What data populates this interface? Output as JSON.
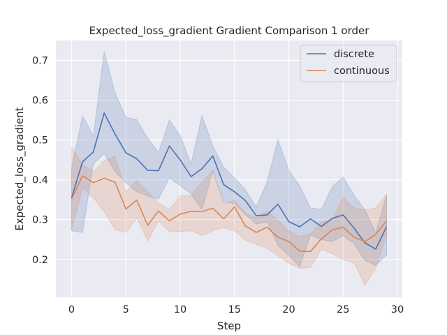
{
  "chart_data": {
    "type": "line",
    "title": "Expected_loss_gradient Gradient Comparison 1 order",
    "xlabel": "Step",
    "ylabel": "Expected_loss_gradient",
    "xlim": [
      -1.45,
      30.45
    ],
    "ylim": [
      0.105,
      0.75
    ],
    "xticks": [
      0,
      5,
      10,
      15,
      20,
      25,
      30
    ],
    "xtick_labels": [
      "0",
      "5",
      "10",
      "15",
      "20",
      "25",
      "30"
    ],
    "yticks": [
      0.2,
      0.3,
      0.4,
      0.5,
      0.6,
      0.7
    ],
    "ytick_labels": [
      "0.2",
      "0.3",
      "0.4",
      "0.5",
      "0.6",
      "0.7"
    ],
    "grid": true,
    "legend_position": "top-right",
    "x": [
      0,
      1,
      2,
      3,
      4,
      5,
      6,
      7,
      8,
      9,
      10,
      11,
      12,
      13,
      14,
      15,
      16,
      17,
      18,
      19,
      20,
      21,
      22,
      23,
      24,
      25,
      26,
      27,
      28,
      29
    ],
    "series": [
      {
        "name": "discrete",
        "color": "#4c72b0",
        "values": [
          0.355,
          0.445,
          0.47,
          0.568,
          0.515,
          0.468,
          0.453,
          0.424,
          0.423,
          0.485,
          0.45,
          0.408,
          0.428,
          0.46,
          0.388,
          0.37,
          0.348,
          0.31,
          0.312,
          0.339,
          0.295,
          0.282,
          0.302,
          0.283,
          0.303,
          0.312,
          0.279,
          0.242,
          0.226,
          0.282
        ],
        "lower": [
          0.272,
          0.268,
          0.44,
          0.467,
          0.42,
          0.392,
          0.37,
          0.36,
          0.352,
          0.405,
          0.385,
          0.365,
          0.325,
          0.422,
          0.345,
          0.34,
          0.313,
          0.289,
          0.295,
          0.235,
          0.21,
          0.182,
          0.262,
          0.25,
          0.245,
          0.26,
          0.24,
          0.198,
          0.185,
          0.212
        ],
        "upper": [
          0.43,
          0.561,
          0.51,
          0.721,
          0.618,
          0.557,
          0.551,
          0.505,
          0.468,
          0.55,
          0.511,
          0.44,
          0.561,
          0.485,
          0.432,
          0.405,
          0.375,
          0.332,
          0.395,
          0.501,
          0.423,
          0.385,
          0.329,
          0.326,
          0.383,
          0.407,
          0.362,
          0.325,
          0.267,
          0.361
        ]
      },
      {
        "name": "continuous",
        "color": "#dd8452",
        "values": [
          0.352,
          0.41,
          0.393,
          0.404,
          0.394,
          0.327,
          0.349,
          0.286,
          0.322,
          0.297,
          0.314,
          0.321,
          0.32,
          0.329,
          0.302,
          0.332,
          0.284,
          0.268,
          0.281,
          0.256,
          0.245,
          0.221,
          0.22,
          0.252,
          0.274,
          0.281,
          0.256,
          0.245,
          0.263,
          0.297
        ],
        "lower": [
          0.275,
          0.38,
          0.355,
          0.32,
          0.275,
          0.268,
          0.304,
          0.246,
          0.296,
          0.27,
          0.27,
          0.272,
          0.26,
          0.272,
          0.28,
          0.272,
          0.248,
          0.238,
          0.228,
          0.209,
          0.19,
          0.178,
          0.18,
          0.225,
          0.215,
          0.199,
          0.192,
          0.136,
          0.178,
          0.262
        ],
        "upper": [
          0.482,
          0.438,
          0.42,
          0.448,
          0.459,
          0.37,
          0.398,
          0.37,
          0.342,
          0.325,
          0.36,
          0.36,
          0.395,
          0.422,
          0.34,
          0.348,
          0.316,
          0.304,
          0.321,
          0.299,
          0.272,
          0.258,
          0.264,
          0.294,
          0.3,
          0.356,
          0.33,
          0.325,
          0.329,
          0.364
        ]
      }
    ]
  }
}
